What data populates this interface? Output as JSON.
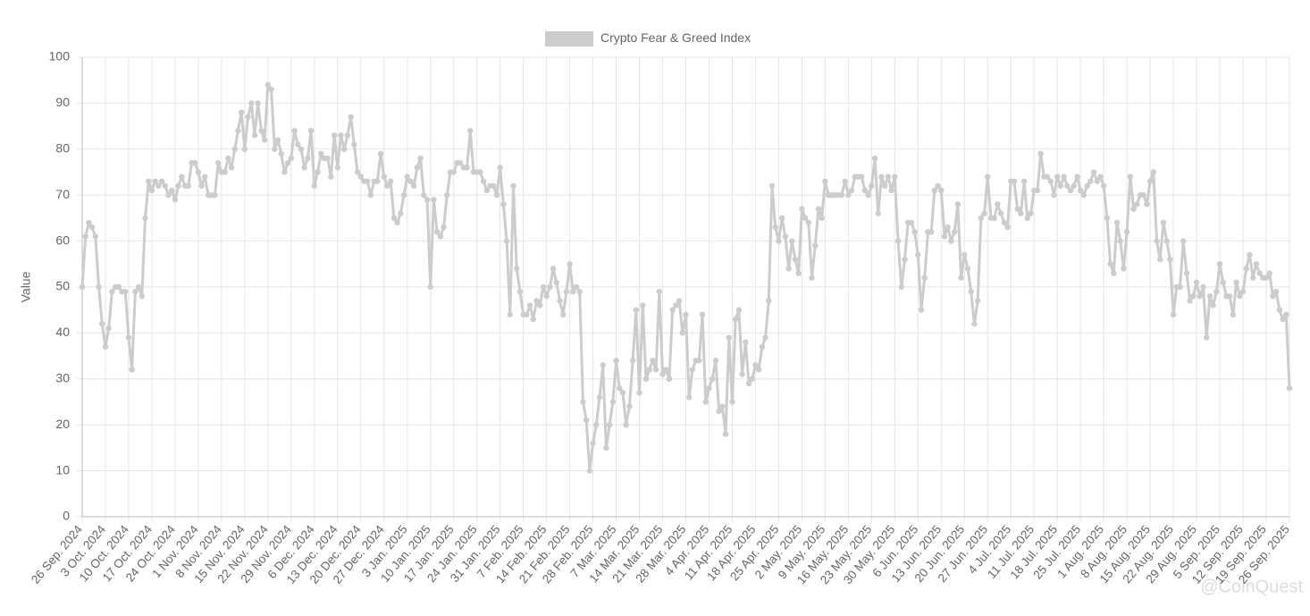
{
  "chart_data": {
    "type": "line",
    "categories": [
      "26 Sep. 2024",
      null,
      null,
      null,
      null,
      null,
      null,
      "3 Oct. 2024",
      null,
      null,
      null,
      null,
      null,
      null,
      "10 Oct. 2024",
      null,
      null,
      null,
      null,
      null,
      null,
      "17 Oct. 2024",
      null,
      null,
      null,
      null,
      null,
      null,
      "24 Oct. 2024",
      null,
      null,
      null,
      null,
      null,
      null,
      "1 Nov. 2024",
      null,
      null,
      null,
      null,
      null,
      null,
      "8 Nov. 2024",
      null,
      null,
      null,
      null,
      null,
      null,
      "15 Nov. 2024",
      null,
      null,
      null,
      null,
      null,
      null,
      "22 Nov. 2024",
      null,
      null,
      null,
      null,
      null,
      null,
      "29 Nov. 2024",
      null,
      null,
      null,
      null,
      null,
      null,
      "6 Dec. 2024",
      null,
      null,
      null,
      null,
      null,
      null,
      "13 Dec. 2024",
      null,
      null,
      null,
      null,
      null,
      null,
      "20 Dec. 2024",
      null,
      null,
      null,
      null,
      null,
      null,
      "27 Dec. 2024",
      null,
      null,
      null,
      null,
      null,
      null,
      "3 Jan. 2025",
      null,
      null,
      null,
      null,
      null,
      null,
      "10 Jan. 2025",
      null,
      null,
      null,
      null,
      null,
      null,
      "17 Jan. 2025",
      null,
      null,
      null,
      null,
      null,
      null,
      "24 Jan. 2025",
      null,
      null,
      null,
      null,
      null,
      null,
      "31 Jan. 2025",
      null,
      null,
      null,
      null,
      null,
      null,
      "7 Feb. 2025",
      null,
      null,
      null,
      null,
      null,
      null,
      "14 Feb. 2025",
      null,
      null,
      null,
      null,
      null,
      null,
      "21 Feb. 2025",
      null,
      null,
      null,
      null,
      null,
      null,
      "28 Feb. 2025",
      null,
      null,
      null,
      null,
      null,
      null,
      "7 Mar. 2025",
      null,
      null,
      null,
      null,
      null,
      null,
      "14 Mar. 2025",
      null,
      null,
      null,
      null,
      null,
      null,
      "21 Mar. 2025",
      null,
      null,
      null,
      null,
      null,
      null,
      "28 Mar. 2025",
      null,
      null,
      null,
      null,
      null,
      null,
      "4 Apr. 2025",
      null,
      null,
      null,
      null,
      null,
      null,
      "11 Apr. 2025",
      null,
      null,
      null,
      null,
      null,
      null,
      "18 Apr. 2025",
      null,
      null,
      null,
      null,
      null,
      null,
      "25 Apr. 2025",
      null,
      null,
      null,
      null,
      null,
      null,
      "2 May. 2025",
      null,
      null,
      null,
      null,
      null,
      null,
      "9 May. 2025",
      null,
      null,
      null,
      null,
      null,
      null,
      "16 May. 2025",
      null,
      null,
      null,
      null,
      null,
      null,
      "23 May. 2025",
      null,
      null,
      null,
      null,
      null,
      null,
      "30 May. 2025",
      null,
      null,
      null,
      null,
      null,
      null,
      "6 Jun. 2025",
      null,
      null,
      null,
      null,
      null,
      null,
      "13 Jun. 2025",
      null,
      null,
      null,
      null,
      null,
      null,
      "20 Jun. 2025",
      null,
      null,
      null,
      null,
      null,
      null,
      "27 Jun. 2025",
      null,
      null,
      null,
      null,
      null,
      null,
      "4 Jul. 2025",
      null,
      null,
      null,
      null,
      null,
      null,
      "11 Jul. 2025",
      null,
      null,
      null,
      null,
      null,
      null,
      "18 Jul. 2025",
      null,
      null,
      null,
      null,
      null,
      null,
      "25 Jul. 2025",
      null,
      null,
      null,
      null,
      null,
      null,
      "1 Aug. 2025",
      null,
      null,
      null,
      null,
      null,
      null,
      "8 Aug. 2025",
      null,
      null,
      null,
      null,
      null,
      null,
      "15 Aug. 2025",
      null,
      null,
      null,
      null,
      null,
      null,
      "22 Aug. 2025",
      null,
      null,
      null,
      null,
      null,
      null,
      "29 Aug. 2025",
      null,
      null,
      null,
      null,
      null,
      null,
      "5 Sep. 2025",
      null,
      null,
      null,
      null,
      null,
      null,
      "12 Sep. 2025",
      null,
      null,
      null,
      null,
      null,
      null,
      "19 Sep. 2025",
      null,
      null,
      null,
      null,
      null,
      null,
      "26 Sep. 2025"
    ],
    "series": [
      {
        "name": "Crypto Fear & Greed Index",
        "color": "#cccccc",
        "values": [
          50,
          61,
          64,
          63,
          61,
          50,
          42,
          37,
          41,
          49,
          50,
          50,
          49,
          49,
          39,
          32,
          49,
          50,
          48,
          65,
          73,
          71,
          73,
          72,
          73,
          72,
          70,
          71,
          69,
          72,
          74,
          72,
          72,
          77,
          77,
          75,
          72,
          74,
          70,
          70,
          70,
          77,
          75,
          75,
          78,
          76,
          80,
          84,
          88,
          80,
          87,
          90,
          83,
          90,
          84,
          82,
          94,
          93,
          80,
          82,
          79,
          75,
          77,
          78,
          84,
          81,
          80,
          76,
          78,
          84,
          72,
          75,
          79,
          78,
          78,
          74,
          83,
          76,
          83,
          80,
          83,
          87,
          81,
          75,
          74,
          73,
          73,
          70,
          73,
          73,
          79,
          74,
          72,
          73,
          65,
          64,
          66,
          70,
          74,
          73,
          72,
          76,
          78,
          70,
          69,
          50,
          69,
          62,
          61,
          63,
          70,
          75,
          75,
          77,
          77,
          76,
          76,
          84,
          75,
          75,
          75,
          73,
          71,
          72,
          72,
          70,
          76,
          68,
          60,
          44,
          72,
          54,
          49,
          44,
          44,
          46,
          43,
          47,
          46,
          50,
          48,
          50,
          54,
          51,
          47,
          44,
          49,
          55,
          49,
          50,
          49,
          25,
          21,
          10,
          16,
          20,
          26,
          33,
          15,
          20,
          25,
          34,
          28,
          27,
          20,
          24,
          34,
          45,
          27,
          46,
          30,
          32,
          34,
          32,
          49,
          31,
          32,
          30,
          45,
          46,
          47,
          40,
          44,
          26,
          32,
          34,
          34,
          44,
          25,
          28,
          30,
          34,
          23,
          24,
          18,
          39,
          25,
          43,
          45,
          31,
          38,
          29,
          30,
          33,
          32,
          37,
          39,
          47,
          72,
          63,
          60,
          65,
          61,
          54,
          60,
          56,
          53,
          67,
          65,
          64,
          52,
          59,
          67,
          65,
          73,
          70,
          70,
          70,
          70,
          70,
          73,
          70,
          71,
          74,
          74,
          74,
          71,
          70,
          72,
          78,
          66,
          74,
          72,
          74,
          71,
          74,
          60,
          50,
          56,
          64,
          64,
          62,
          57,
          45,
          52,
          62,
          62,
          71,
          72,
          71,
          61,
          63,
          60,
          62,
          68,
          52,
          57,
          54,
          49,
          42,
          47,
          65,
          66,
          74,
          65,
          65,
          68,
          66,
          64,
          63,
          73,
          73,
          67,
          66,
          73,
          65,
          66,
          71,
          71,
          79,
          74,
          74,
          73,
          70,
          74,
          72,
          74,
          72,
          71,
          72,
          74,
          71,
          70,
          72,
          73,
          75,
          73,
          74,
          72,
          65,
          55,
          53,
          64,
          60,
          54,
          62,
          74,
          67,
          68,
          70,
          70,
          68,
          73,
          75,
          60,
          56,
          64,
          60,
          56,
          44,
          50,
          50,
          60,
          53,
          47,
          48,
          51,
          48,
          50,
          39,
          48,
          46,
          49,
          55,
          51,
          48,
          48,
          44,
          51,
          48,
          49,
          54,
          57,
          52,
          55,
          53,
          52,
          52,
          53,
          48,
          49,
          45,
          43,
          44,
          28
        ]
      }
    ],
    "y_label": "Value",
    "ylim": [
      0,
      100
    ],
    "yticks": [
      0,
      10,
      20,
      30,
      40,
      50,
      60,
      70,
      80,
      90,
      100
    ],
    "grid": true,
    "legend_position": "top",
    "watermark": "@CoinQuest"
  }
}
